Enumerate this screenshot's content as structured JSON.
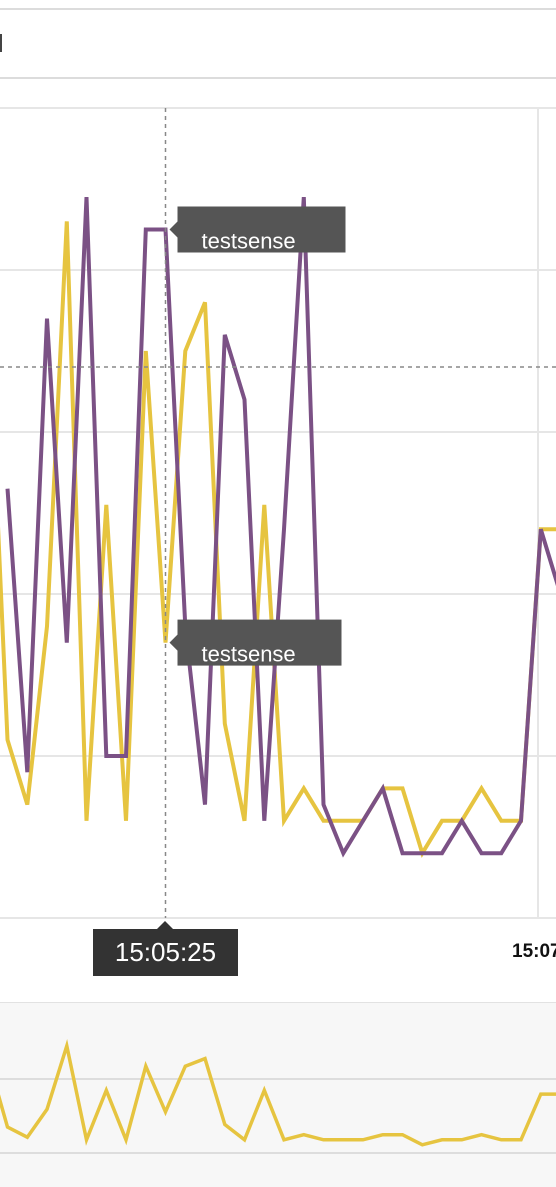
{
  "colors": {
    "series_0": "#e6c440",
    "series_1": "#7b5185",
    "tooltip_bg": "#555555",
    "time_label_bg": "#333333",
    "grid": "#e6e6e6",
    "crosshair": "#888888",
    "overview_bg": "#f7f7f7"
  },
  "crosshair": {
    "time_label": "15:05:25"
  },
  "tooltips": [
    {
      "series_index": 1,
      "text": "testsense"
    },
    {
      "series_index": 0,
      "text": "testsense"
    }
  ],
  "chart_data": {
    "type": "line",
    "crosshair_index": 8,
    "x_tick_labels": [
      "15:07"
    ],
    "y_range": [
      0,
      10
    ],
    "grid": true,
    "series": [
      {
        "values": [
          7.7,
          2.2,
          1.4,
          3.6,
          8.6,
          1.2,
          5.1,
          1.2,
          7.0,
          3.4,
          7.0,
          7.6,
          2.4,
          1.2,
          5.1,
          1.2,
          1.6,
          1.2,
          1.2,
          1.2,
          1.6,
          1.6,
          0.8,
          1.2,
          1.2,
          1.6,
          1.2,
          1.2,
          4.8,
          4.8
        ]
      },
      {
        "values": [
          5.3,
          1.8,
          7.4,
          3.4,
          8.9,
          2.0,
          2.0,
          8.5,
          8.5,
          3.6,
          1.4,
          7.2,
          6.4,
          1.2,
          4.8,
          8.9,
          1.4,
          0.8,
          1.2,
          1.6,
          0.8,
          0.8,
          0.8,
          1.2,
          0.8,
          0.8,
          1.2,
          4.8,
          4.0
        ]
      }
    ]
  }
}
